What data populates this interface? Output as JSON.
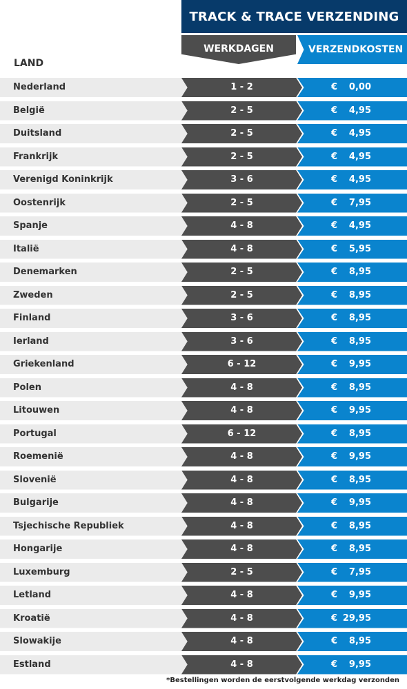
{
  "title": "TRACK & TRACE VERZENDING",
  "headers": {
    "land": "LAND",
    "werkdagen": "WERKDAGEN",
    "verzendkosten": "VERZENDKOSTEN"
  },
  "currency": "€",
  "rows": [
    {
      "land": "Nederland",
      "werkdagen": "1 - 2",
      "kosten": "0,00"
    },
    {
      "land": "België",
      "werkdagen": "2 - 5",
      "kosten": "4,95"
    },
    {
      "land": "Duitsland",
      "werkdagen": "2 - 5",
      "kosten": "4,95"
    },
    {
      "land": "Frankrijk",
      "werkdagen": "2 - 5",
      "kosten": "4,95"
    },
    {
      "land": "Verenigd Koninkrijk",
      "werkdagen": "3 - 6",
      "kosten": "4,95"
    },
    {
      "land": "Oostenrijk",
      "werkdagen": "2 - 5",
      "kosten": "7,95"
    },
    {
      "land": "Spanje",
      "werkdagen": "4 - 8",
      "kosten": "4,95"
    },
    {
      "land": "Italië",
      "werkdagen": "4 - 8",
      "kosten": "5,95"
    },
    {
      "land": "Denemarken",
      "werkdagen": "2 - 5",
      "kosten": "8,95"
    },
    {
      "land": "Zweden",
      "werkdagen": "2 - 5",
      "kosten": "8,95"
    },
    {
      "land": "Finland",
      "werkdagen": "3 - 6",
      "kosten": "8,95"
    },
    {
      "land": "Ierland",
      "werkdagen": "3 - 6",
      "kosten": "8,95"
    },
    {
      "land": "Griekenland",
      "werkdagen": "6 - 12",
      "kosten": "9,95"
    },
    {
      "land": "Polen",
      "werkdagen": "4 - 8",
      "kosten": "8,95"
    },
    {
      "land": "Litouwen",
      "werkdagen": "4 - 8",
      "kosten": "9,95"
    },
    {
      "land": "Portugal",
      "werkdagen": "6 - 12",
      "kosten": "8,95"
    },
    {
      "land": "Roemenië",
      "werkdagen": "4 - 8",
      "kosten": "9,95"
    },
    {
      "land": "Slovenië",
      "werkdagen": "4 - 8",
      "kosten": "8,95"
    },
    {
      "land": "Bulgarije",
      "werkdagen": "4 - 8",
      "kosten": "9,95"
    },
    {
      "land": "Tsjechische Republiek",
      "werkdagen": "4 - 8",
      "kosten": "8,95"
    },
    {
      "land": "Hongarije",
      "werkdagen": "4 - 8",
      "kosten": "8,95"
    },
    {
      "land": "Luxemburg",
      "werkdagen": "2 - 5",
      "kosten": "7,95"
    },
    {
      "land": "Letland",
      "werkdagen": "4 - 8",
      "kosten": "9,95"
    },
    {
      "land": "Kroatië",
      "werkdagen": "4 - 8",
      "kosten": "29,95"
    },
    {
      "land": "Slowakije",
      "werkdagen": "4 - 8",
      "kosten": "8,95"
    },
    {
      "land": "Estland",
      "werkdagen": "4 - 8",
      "kosten": "9,95"
    }
  ],
  "footnote": "*Bestellingen worden de eerstvolgende werkdag verzonden",
  "colors": {
    "banner": "#073a6a",
    "days": "#4d4d4d",
    "cost": "#0a84ce",
    "country_bg": "#ebebeb"
  }
}
